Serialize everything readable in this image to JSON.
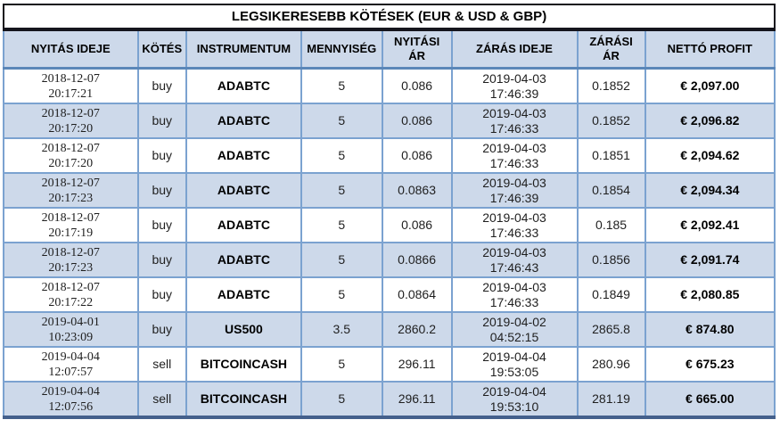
{
  "title": "LEGSIKERESEBB KÖTÉSEK (EUR & USD & GBP)",
  "columns": [
    "NYITÁS IDEJE",
    "KÖTÉS",
    "INSTRUMENTUM",
    "MENNYISÉG",
    "NYITÁSI ÁR",
    "ZÁRÁS IDEJE",
    "ZÁRÁSI ÁR",
    "NETTÓ PROFIT"
  ],
  "rows": [
    [
      "2018-12-07\n20:17:21",
      "buy",
      "ADABTC",
      "5",
      "0.086",
      "2019-04-03\n17:46:39",
      "0.1852",
      "€ 2,097.00"
    ],
    [
      "2018-12-07\n20:17:20",
      "buy",
      "ADABTC",
      "5",
      "0.086",
      "2019-04-03\n17:46:33",
      "0.1852",
      "€ 2,096.82"
    ],
    [
      "2018-12-07\n20:17:20",
      "buy",
      "ADABTC",
      "5",
      "0.086",
      "2019-04-03\n17:46:33",
      "0.1851",
      "€ 2,094.62"
    ],
    [
      "2018-12-07\n20:17:23",
      "buy",
      "ADABTC",
      "5",
      "0.0863",
      "2019-04-03\n17:46:39",
      "0.1854",
      "€ 2,094.34"
    ],
    [
      "2018-12-07\n20:17:19",
      "buy",
      "ADABTC",
      "5",
      "0.086",
      "2019-04-03\n17:46:33",
      "0.185",
      "€ 2,092.41"
    ],
    [
      "2018-12-07\n20:17:23",
      "buy",
      "ADABTC",
      "5",
      "0.0866",
      "2019-04-03\n17:46:43",
      "0.1856",
      "€ 2,091.74"
    ],
    [
      "2018-12-07\n20:17:22",
      "buy",
      "ADABTC",
      "5",
      "0.0864",
      "2019-04-03\n17:46:33",
      "0.1849",
      "€ 2,080.85"
    ],
    [
      "2019-04-01\n10:23:09",
      "buy",
      "US500",
      "3.5",
      "2860.2",
      "2019-04-02\n04:52:15",
      "2865.8",
      "€ 874.80"
    ],
    [
      "2019-04-04\n12:07:57",
      "sell",
      "BITCOINCASH",
      "5",
      "296.11",
      "2019-04-04\n19:53:05",
      "280.96",
      "€ 675.23"
    ],
    [
      "2019-04-04\n12:07:56",
      "sell",
      "BITCOINCASH",
      "5",
      "296.11",
      "2019-04-04\n19:53:10",
      "281.19",
      "€ 665.00"
    ]
  ],
  "colors": {
    "header_bg": "#cdd9ea",
    "stripe_bg": "#cdd9ea",
    "grid_border": "#7ba2d0",
    "header_rule": "#5b87b8",
    "bottom_rule": "#44608c",
    "title_frame": "#15151d"
  }
}
